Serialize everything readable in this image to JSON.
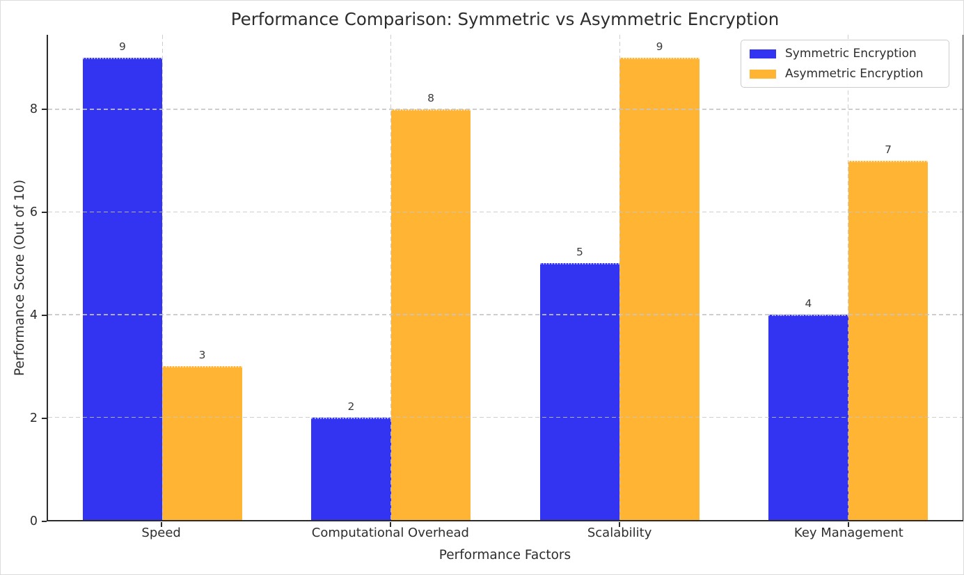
{
  "chart_data": {
    "type": "bar",
    "title": "Performance Comparison: Symmetric vs Asymmetric Encryption",
    "xlabel": "Performance Factors",
    "ylabel": "Performance Score (Out of 10)",
    "categories": [
      "Speed",
      "Computational Overhead",
      "Scalability",
      "Key Management"
    ],
    "series": [
      {
        "name": "Symmetric Encryption",
        "color": "#3333f2",
        "values": [
          9,
          2,
          5,
          4
        ]
      },
      {
        "name": "Asymmetric Encryption",
        "color": "#ffb434",
        "values": [
          3,
          8,
          9,
          7
        ]
      }
    ],
    "yticks": [
      0,
      2,
      4,
      6,
      8
    ],
    "ylim": [
      0,
      9.45
    ],
    "grid": "dashed, both axes, drawn above bars",
    "legend_position": "top-right",
    "bar_value_labels": [
      9,
      3,
      2,
      8,
      5,
      9,
      4,
      7
    ],
    "colors": {
      "symmetric": "#3333f2",
      "asymmetric": "#ffb434",
      "text": "#2d2d2d",
      "grid": "#c6c6c6",
      "spine": "#2b2b2b",
      "background": "#ffffff"
    }
  }
}
